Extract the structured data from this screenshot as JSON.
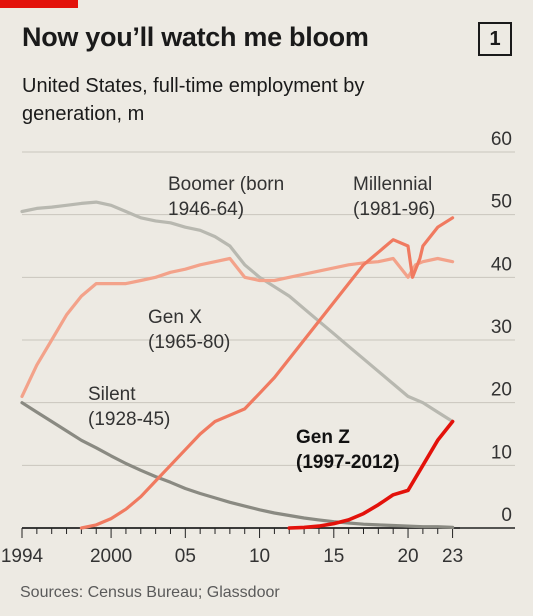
{
  "header": {
    "title": "Now you’ll watch me bloom",
    "figure_number": "1",
    "subtitle": "United States, full-time employment by generation, m"
  },
  "footer": {
    "source": "Sources: Census Bureau; Glassdoor"
  },
  "chart_data": {
    "type": "line",
    "title": "Now you’ll watch me bloom",
    "subtitle": "United States, full-time employment by generation, m",
    "xlabel": "",
    "ylabel": "",
    "xlim": [
      1994,
      2023.5
    ],
    "ylim": [
      0,
      60
    ],
    "y_axis_side": "right",
    "grid": "horizontal",
    "y_ticks": [
      0,
      10,
      20,
      30,
      40,
      50,
      60
    ],
    "y_tick_labels": [
      "0",
      "10",
      "20",
      "30",
      "40",
      "50",
      "60"
    ],
    "x_ticks": [
      1994,
      2000,
      2005,
      2010,
      2015,
      2020,
      2023
    ],
    "x_tick_labels": [
      "1994",
      "2000",
      "05",
      "10",
      "15",
      "20",
      "23"
    ],
    "legend": "inline labels",
    "series": [
      {
        "name": "Silent",
        "label_lines": [
          "Silent",
          "(1928-45)"
        ],
        "color": "#8a8a82",
        "points": [
          [
            1994,
            20
          ],
          [
            1995,
            18.5
          ],
          [
            1996,
            17
          ],
          [
            1997,
            15.5
          ],
          [
            1998,
            14
          ],
          [
            1999,
            12.8
          ],
          [
            2000,
            11.5
          ],
          [
            2001,
            10.3
          ],
          [
            2002,
            9.2
          ],
          [
            2003,
            8.2
          ],
          [
            2004,
            7.3
          ],
          [
            2005,
            6.3
          ],
          [
            2006,
            5.5
          ],
          [
            2007,
            4.8
          ],
          [
            2008,
            4.1
          ],
          [
            2009,
            3.5
          ],
          [
            2010,
            2.9
          ],
          [
            2011,
            2.4
          ],
          [
            2012,
            2
          ],
          [
            2013,
            1.6
          ],
          [
            2014,
            1.3
          ],
          [
            2015,
            1
          ],
          [
            2016,
            0.8
          ],
          [
            2017,
            0.6
          ],
          [
            2018,
            0.5
          ],
          [
            2019,
            0.4
          ],
          [
            2020,
            0.3
          ],
          [
            2021,
            0.2
          ],
          [
            2022,
            0.2
          ],
          [
            2023,
            0.1
          ]
        ]
      },
      {
        "name": "Boomer",
        "label_lines": [
          "Boomer (born",
          "1946-64)"
        ],
        "color": "#b8b8b0",
        "points": [
          [
            1994,
            50.5
          ],
          [
            1995,
            51
          ],
          [
            1996,
            51.2
          ],
          [
            1997,
            51.5
          ],
          [
            1998,
            51.8
          ],
          [
            1999,
            52
          ],
          [
            2000,
            51.5
          ],
          [
            2001,
            50.5
          ],
          [
            2002,
            49.5
          ],
          [
            2003,
            49
          ],
          [
            2004,
            48.7
          ],
          [
            2005,
            48
          ],
          [
            2006,
            47.5
          ],
          [
            2007,
            46.5
          ],
          [
            2008,
            45
          ],
          [
            2009,
            42
          ],
          [
            2010,
            40
          ],
          [
            2011,
            38.5
          ],
          [
            2012,
            37
          ],
          [
            2013,
            35
          ],
          [
            2014,
            33
          ],
          [
            2015,
            31
          ],
          [
            2016,
            29
          ],
          [
            2017,
            27
          ],
          [
            2018,
            25
          ],
          [
            2019,
            23
          ],
          [
            2020,
            21
          ],
          [
            2021,
            20
          ],
          [
            2022,
            18.5
          ],
          [
            2023,
            17
          ]
        ]
      },
      {
        "name": "Gen X",
        "label_lines": [
          "Gen X",
          "(1965-80)"
        ],
        "color": "#f3a28a",
        "points": [
          [
            1994,
            21
          ],
          [
            1995,
            26
          ],
          [
            1996,
            30
          ],
          [
            1997,
            34
          ],
          [
            1998,
            37
          ],
          [
            1999,
            39
          ],
          [
            2000,
            39
          ],
          [
            2001,
            39
          ],
          [
            2002,
            39.5
          ],
          [
            2003,
            40
          ],
          [
            2004,
            40.8
          ],
          [
            2005,
            41.3
          ],
          [
            2006,
            42
          ],
          [
            2007,
            42.5
          ],
          [
            2008,
            43
          ],
          [
            2009,
            40
          ],
          [
            2010,
            39.5
          ],
          [
            2011,
            39.5
          ],
          [
            2012,
            40
          ],
          [
            2013,
            40.5
          ],
          [
            2014,
            41
          ],
          [
            2015,
            41.5
          ],
          [
            2016,
            42
          ],
          [
            2017,
            42.3
          ],
          [
            2018,
            42.5
          ],
          [
            2019,
            43
          ],
          [
            2020,
            40
          ],
          [
            2020.5,
            42
          ],
          [
            2021,
            42.5
          ],
          [
            2022,
            43
          ],
          [
            2023,
            42.5
          ]
        ]
      },
      {
        "name": "Millennial",
        "label_lines": [
          "Millennial",
          "(1981-96)"
        ],
        "color": "#f07a60",
        "points": [
          [
            1998,
            0
          ],
          [
            1999,
            0.5
          ],
          [
            2000,
            1.5
          ],
          [
            2001,
            3
          ],
          [
            2002,
            5
          ],
          [
            2003,
            7.5
          ],
          [
            2004,
            10
          ],
          [
            2005,
            12.5
          ],
          [
            2006,
            15
          ],
          [
            2007,
            17
          ],
          [
            2008,
            18
          ],
          [
            2009,
            19
          ],
          [
            2010,
            21.5
          ],
          [
            2011,
            24
          ],
          [
            2012,
            27
          ],
          [
            2013,
            30
          ],
          [
            2014,
            33
          ],
          [
            2015,
            36
          ],
          [
            2016,
            39
          ],
          [
            2017,
            42
          ],
          [
            2018,
            44
          ],
          [
            2019,
            46
          ],
          [
            2020,
            45
          ],
          [
            2020.3,
            40
          ],
          [
            2020.8,
            43
          ],
          [
            2021,
            45
          ],
          [
            2022,
            48
          ],
          [
            2023,
            49.5
          ]
        ]
      },
      {
        "name": "Gen Z",
        "label_lines": [
          "Gen Z",
          "(1997-2012)"
        ],
        "color": "#e3120b",
        "points": [
          [
            2012,
            0
          ],
          [
            2013,
            0.1
          ],
          [
            2014,
            0.3
          ],
          [
            2015,
            0.7
          ],
          [
            2016,
            1.3
          ],
          [
            2017,
            2.3
          ],
          [
            2018,
            3.7
          ],
          [
            2019,
            5.3
          ],
          [
            2020,
            6
          ],
          [
            2021,
            10
          ],
          [
            2022,
            14
          ],
          [
            2023,
            17
          ]
        ]
      }
    ]
  }
}
